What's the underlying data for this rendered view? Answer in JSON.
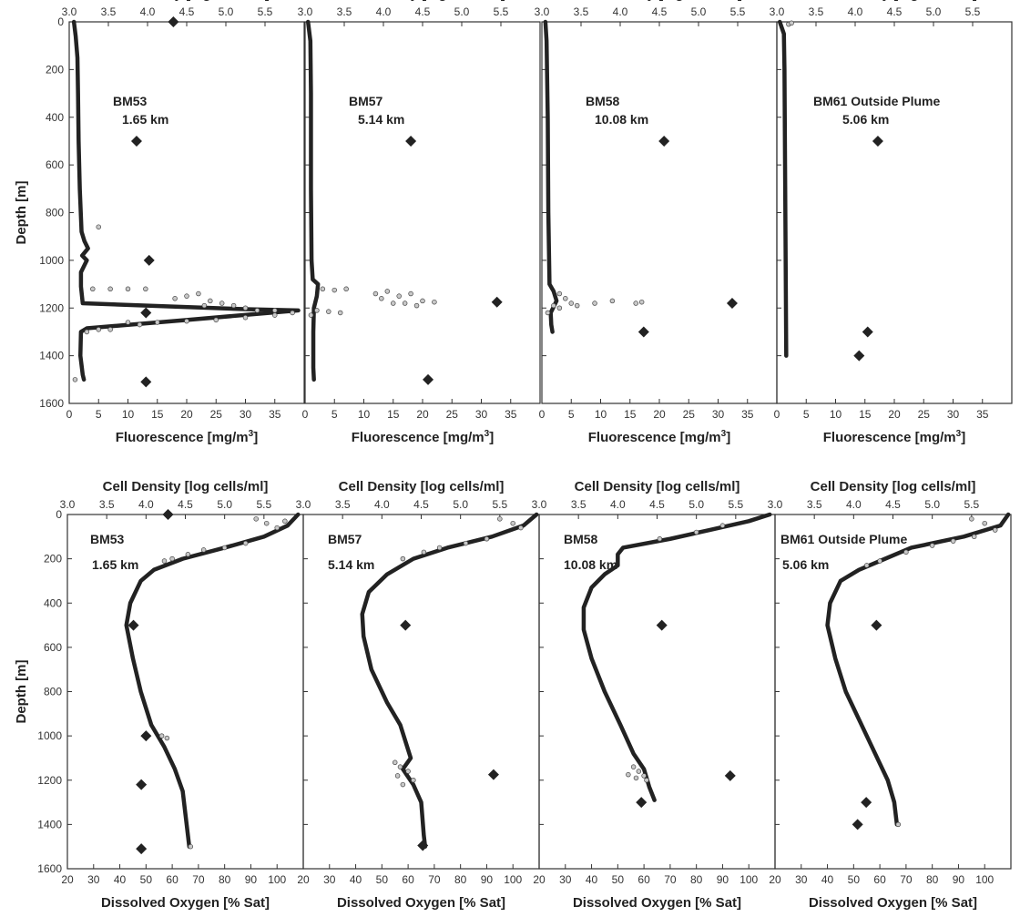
{
  "colors": {
    "profile": "#222222",
    "scatter_fill": "#c8c8c8",
    "scatter_stroke": "#444444",
    "cell_density_marker": "#222222",
    "axis": "#333333"
  },
  "chart_data": [
    {
      "type": "scatter",
      "row": "top",
      "station": "BM53",
      "distance": "1.65 km",
      "xlabel": "Fluorescence [mg/m",
      "xlabel_sup": "3",
      "xlabel_end": "]",
      "x2label": "Cell Density [log cells/ml]",
      "ylabel": "Depth [m]",
      "xlim": [
        0,
        40
      ],
      "xticks": [
        0,
        5,
        10,
        15,
        20,
        25,
        30,
        35
      ],
      "x2lim": [
        3.0,
        6.0
      ],
      "x2ticks": [
        "3.0",
        "3.5",
        "4.0",
        "4.5",
        "5.0",
        "5.5"
      ],
      "ylim": [
        0,
        1600
      ],
      "yticks": [
        0,
        200,
        400,
        600,
        800,
        1000,
        1200,
        1400,
        1600
      ],
      "profile": [
        [
          0.8,
          0
        ],
        [
          1.1,
          60
        ],
        [
          1.4,
          150
        ],
        [
          1.5,
          300
        ],
        [
          1.6,
          500
        ],
        [
          1.8,
          700
        ],
        [
          2.1,
          880
        ],
        [
          2.6,
          920
        ],
        [
          3.2,
          950
        ],
        [
          2.2,
          980
        ],
        [
          3.0,
          1000
        ],
        [
          2.0,
          1050
        ],
        [
          2.0,
          1110
        ],
        [
          2.3,
          1180
        ],
        [
          30,
          1205
        ],
        [
          39,
          1210
        ],
        [
          20,
          1250
        ],
        [
          3,
          1285
        ],
        [
          2,
          1300
        ],
        [
          1.9,
          1400
        ],
        [
          2.3,
          1480
        ],
        [
          2.5,
          1500
        ]
      ],
      "scatter": [
        [
          5,
          860
        ],
        [
          4,
          1120
        ],
        [
          7,
          1120
        ],
        [
          10,
          1120
        ],
        [
          13,
          1120
        ],
        [
          18,
          1160
        ],
        [
          20,
          1150
        ],
        [
          22,
          1140
        ],
        [
          24,
          1170
        ],
        [
          26,
          1180
        ],
        [
          23,
          1190
        ],
        [
          28,
          1190
        ],
        [
          30,
          1200
        ],
        [
          32,
          1210
        ],
        [
          35,
          1210
        ],
        [
          38,
          1220
        ],
        [
          10,
          1260
        ],
        [
          15,
          1260
        ],
        [
          20,
          1255
        ],
        [
          25,
          1250
        ],
        [
          30,
          1240
        ],
        [
          35,
          1230
        ],
        [
          5,
          1290
        ],
        [
          7,
          1290
        ],
        [
          3,
          1300
        ],
        [
          12,
          1270
        ],
        [
          1,
          1500
        ]
      ],
      "cell_density": [
        [
          4.33,
          0
        ],
        [
          3.86,
          500
        ],
        [
          4.02,
          1000
        ],
        [
          3.98,
          1220
        ],
        [
          3.98,
          1510
        ]
      ]
    },
    {
      "type": "scatter",
      "row": "top",
      "station": "BM57",
      "distance": "5.14 km",
      "xlabel": "Fluorescence [mg/m",
      "xlabel_sup": "3",
      "xlabel_end": "]",
      "x2label": "Cell Density [log cells/ml]",
      "xlim": [
        0,
        40
      ],
      "xticks": [
        0,
        5,
        10,
        15,
        20,
        25,
        30,
        35
      ],
      "x2lim": [
        3.0,
        6.0
      ],
      "x2ticks": [
        "3.0",
        "3.5",
        "4.0",
        "4.5",
        "5.0",
        "5.5"
      ],
      "ylim": [
        0,
        1600
      ],
      "profile": [
        [
          0.5,
          0
        ],
        [
          0.9,
          80
        ],
        [
          1.0,
          300
        ],
        [
          1.0,
          700
        ],
        [
          1.1,
          1000
        ],
        [
          1.3,
          1080
        ],
        [
          2.2,
          1100
        ],
        [
          2.0,
          1150
        ],
        [
          1.5,
          1200
        ],
        [
          1.4,
          1300
        ],
        [
          1.4,
          1450
        ],
        [
          1.5,
          1500
        ]
      ],
      "scatter": [
        [
          3,
          1120
        ],
        [
          5,
          1125
        ],
        [
          7,
          1120
        ],
        [
          12,
          1140
        ],
        [
          14,
          1130
        ],
        [
          16,
          1150
        ],
        [
          18,
          1140
        ],
        [
          20,
          1170
        ],
        [
          22,
          1175
        ],
        [
          19,
          1190
        ],
        [
          15,
          1180
        ],
        [
          2,
          1210
        ],
        [
          4,
          1215
        ],
        [
          6,
          1220
        ],
        [
          1,
          1230
        ],
        [
          13,
          1160
        ],
        [
          17,
          1180
        ]
      ],
      "cell_density": [
        [
          4.35,
          500
        ],
        [
          5.45,
          1175
        ],
        [
          4.57,
          1500
        ]
      ]
    },
    {
      "type": "scatter",
      "row": "top",
      "station": "BM58",
      "distance": "10.08 km",
      "xlabel": "Fluorescence [mg/m",
      "xlabel_sup": "3",
      "xlabel_end": "]",
      "x2label": "Cell Density [log cells/ml]",
      "xlim": [
        0,
        40
      ],
      "xticks": [
        0,
        5,
        10,
        15,
        20,
        25,
        30,
        35
      ],
      "x2lim": [
        3.0,
        6.0
      ],
      "x2ticks": [
        "3.0",
        "3.5",
        "4.0",
        "4.5",
        "5.0",
        "5.5"
      ],
      "ylim": [
        0,
        1600
      ],
      "profile": [
        [
          0.6,
          0
        ],
        [
          0.8,
          80
        ],
        [
          1.0,
          400
        ],
        [
          1.1,
          800
        ],
        [
          1.3,
          1100
        ],
        [
          2.0,
          1130
        ],
        [
          2.5,
          1170
        ],
        [
          1.5,
          1220
        ],
        [
          1.6,
          1270
        ],
        [
          1.8,
          1300
        ]
      ],
      "scatter": [
        [
          3,
          1140
        ],
        [
          4,
          1160
        ],
        [
          5,
          1180
        ],
        [
          3,
          1200
        ],
        [
          2,
          1190
        ],
        [
          9,
          1180
        ],
        [
          12,
          1170
        ],
        [
          16,
          1180
        ],
        [
          17,
          1175
        ],
        [
          6,
          1190
        ],
        [
          1,
          1220
        ]
      ],
      "cell_density": [
        [
          4.56,
          500
        ],
        [
          5.43,
          1180
        ],
        [
          4.3,
          1300
        ]
      ]
    },
    {
      "type": "scatter",
      "row": "top",
      "station": "BM61 Outside Plume",
      "distance": "5.06 km",
      "xlabel": "Fluorescence [mg/m",
      "xlabel_sup": "3",
      "xlabel_end": "]",
      "x2label": "Cell Density [log cells/ml]",
      "xlim": [
        0,
        40
      ],
      "xticks": [
        0,
        5,
        10,
        15,
        20,
        25,
        30,
        35
      ],
      "x2lim": [
        3.0,
        6.0
      ],
      "x2ticks": [
        "3.0",
        "3.5",
        "4.0",
        "4.5",
        "5.0",
        "5.5"
      ],
      "ylim": [
        0,
        1600
      ],
      "profile": [
        [
          0.5,
          0
        ],
        [
          1.2,
          50
        ],
        [
          1.3,
          200
        ],
        [
          1.4,
          600
        ],
        [
          1.5,
          1000
        ],
        [
          1.6,
          1400
        ]
      ],
      "scatter": [
        [
          2,
          10
        ],
        [
          2.5,
          5
        ]
      ],
      "cell_density": [
        [
          4.29,
          500
        ],
        [
          4.16,
          1300
        ],
        [
          4.05,
          1400
        ]
      ]
    },
    {
      "type": "scatter",
      "row": "bottom",
      "station": "BM53",
      "distance": "1.65 km",
      "xlabel": "Dissolved Oxygen [% Sat]",
      "x2label": "Cell Density [log cells/ml]",
      "ylabel": "Depth [m]",
      "xlim": [
        20,
        110
      ],
      "xticks": [
        20,
        30,
        40,
        50,
        60,
        70,
        80,
        90,
        100
      ],
      "x2lim": [
        3.0,
        6.0
      ],
      "x2ticks": [
        "3.0",
        "3.5",
        "4.0",
        "4.5",
        "5.0",
        "5.5"
      ],
      "ylim": [
        0,
        1600
      ],
      "yticks": [
        0,
        200,
        400,
        600,
        800,
        1000,
        1200,
        1400,
        1600
      ],
      "profile": [
        [
          108,
          0
        ],
        [
          104,
          50
        ],
        [
          95,
          100
        ],
        [
          80,
          150
        ],
        [
          64,
          200
        ],
        [
          53,
          250
        ],
        [
          48,
          300
        ],
        [
          44,
          400
        ],
        [
          42.5,
          500
        ],
        [
          45,
          650
        ],
        [
          48,
          800
        ],
        [
          52,
          950
        ],
        [
          57,
          1050
        ],
        [
          61,
          1150
        ],
        [
          64,
          1250
        ],
        [
          65.5,
          1400
        ],
        [
          66.5,
          1500
        ]
      ],
      "scatter": [
        [
          92,
          20
        ],
        [
          96,
          40
        ],
        [
          100,
          60
        ],
        [
          103,
          30
        ],
        [
          88,
          130
        ],
        [
          80,
          150
        ],
        [
          72,
          160
        ],
        [
          66,
          180
        ],
        [
          60,
          200
        ],
        [
          57,
          210
        ],
        [
          56,
          1000
        ],
        [
          58,
          1010
        ],
        [
          67,
          1500
        ]
      ],
      "cell_density": [
        [
          4.28,
          0
        ],
        [
          3.84,
          500
        ],
        [
          4.0,
          1000
        ],
        [
          3.94,
          1220
        ],
        [
          3.94,
          1510
        ]
      ]
    },
    {
      "type": "scatter",
      "row": "bottom",
      "station": "BM57",
      "distance": "5.14 km",
      "xlabel": "Dissolved Oxygen [% Sat]",
      "x2label": "Cell Density [log cells/ml]",
      "xlim": [
        20,
        110
      ],
      "xticks": [
        20,
        30,
        40,
        50,
        60,
        70,
        80,
        90,
        100
      ],
      "x2lim": [
        3.0,
        6.0
      ],
      "x2ticks": [
        "3.0",
        "3.5",
        "4.0",
        "4.5",
        "5.0",
        "5.5"
      ],
      "ylim": [
        0,
        1600
      ],
      "profile": [
        [
          109,
          0
        ],
        [
          104,
          50
        ],
        [
          92,
          100
        ],
        [
          75,
          150
        ],
        [
          62,
          200
        ],
        [
          52,
          270
        ],
        [
          45,
          350
        ],
        [
          42.5,
          450
        ],
        [
          43,
          550
        ],
        [
          46,
          700
        ],
        [
          52,
          850
        ],
        [
          57,
          950
        ],
        [
          61,
          1100
        ],
        [
          58,
          1150
        ],
        [
          62,
          1220
        ],
        [
          65,
          1300
        ],
        [
          66,
          1450
        ],
        [
          66.5,
          1500
        ]
      ],
      "scatter": [
        [
          95,
          20
        ],
        [
          100,
          40
        ],
        [
          103,
          60
        ],
        [
          90,
          110
        ],
        [
          82,
          130
        ],
        [
          72,
          150
        ],
        [
          66,
          170
        ],
        [
          58,
          200
        ],
        [
          55,
          1120
        ],
        [
          57,
          1140
        ],
        [
          60,
          1160
        ],
        [
          56,
          1180
        ],
        [
          62,
          1200
        ],
        [
          58,
          1220
        ]
      ],
      "cell_density": [
        [
          4.3,
          500
        ],
        [
          5.42,
          1175
        ],
        [
          4.52,
          1495
        ]
      ]
    },
    {
      "type": "scatter",
      "row": "bottom",
      "station": "BM58",
      "distance": "10.08 km",
      "xlabel": "Dissolved Oxygen [% Sat]",
      "x2label": "Cell Density [log cells/ml]",
      "xlim": [
        20,
        110
      ],
      "xticks": [
        20,
        30,
        40,
        50,
        60,
        70,
        80,
        90,
        100
      ],
      "x2lim": [
        3.0,
        6.0
      ],
      "x2ticks": [
        "3.0",
        "3.5",
        "4.0",
        "4.5",
        "5.0",
        "5.5"
      ],
      "ylim": [
        0,
        1600
      ],
      "profile": [
        [
          108,
          0
        ],
        [
          100,
          30
        ],
        [
          85,
          70
        ],
        [
          70,
          110
        ],
        [
          52,
          150
        ],
        [
          50,
          180
        ],
        [
          50,
          230
        ],
        [
          45,
          270
        ],
        [
          40,
          330
        ],
        [
          37,
          420
        ],
        [
          37,
          520
        ],
        [
          40,
          650
        ],
        [
          45,
          800
        ],
        [
          51,
          950
        ],
        [
          56,
          1080
        ],
        [
          60,
          1150
        ],
        [
          62,
          1230
        ],
        [
          64,
          1290
        ]
      ],
      "scatter": [
        [
          90,
          50
        ],
        [
          80,
          80
        ],
        [
          66,
          110
        ],
        [
          56,
          1140
        ],
        [
          58,
          1160
        ],
        [
          60,
          1180
        ],
        [
          54,
          1175
        ],
        [
          61,
          1200
        ],
        [
          57,
          1190
        ]
      ],
      "cell_density": [
        [
          4.56,
          500
        ],
        [
          5.43,
          1180
        ],
        [
          4.3,
          1300
        ]
      ]
    },
    {
      "type": "scatter",
      "row": "bottom",
      "station": "BM61 Outside Plume",
      "distance": "5.06 km",
      "xlabel": "Dissolved Oxygen [% Sat]",
      "x2label": "Cell Density [log cells/ml]",
      "xlim": [
        20,
        110
      ],
      "xticks": [
        20,
        30,
        40,
        50,
        60,
        70,
        80,
        90,
        100
      ],
      "x2lim": [
        3.0,
        6.0
      ],
      "x2ticks": [
        "3.0",
        "3.5",
        "4.0",
        "4.5",
        "5.0",
        "5.5"
      ],
      "ylim": [
        0,
        1600
      ],
      "profile": [
        [
          109,
          0
        ],
        [
          106,
          50
        ],
        [
          92,
          100
        ],
        [
          72,
          150
        ],
        [
          62,
          200
        ],
        [
          52,
          250
        ],
        [
          45,
          300
        ],
        [
          41,
          400
        ],
        [
          40,
          500
        ],
        [
          43,
          650
        ],
        [
          47,
          800
        ],
        [
          53,
          950
        ],
        [
          59,
          1100
        ],
        [
          63,
          1200
        ],
        [
          65.5,
          1300
        ],
        [
          66.5,
          1400
        ]
      ],
      "scatter": [
        [
          95,
          20
        ],
        [
          100,
          40
        ],
        [
          104,
          70
        ],
        [
          96,
          100
        ],
        [
          88,
          120
        ],
        [
          80,
          140
        ],
        [
          70,
          170
        ],
        [
          60,
          210
        ],
        [
          55,
          230
        ],
        [
          67,
          1400
        ]
      ],
      "cell_density": [
        [
          4.29,
          500
        ],
        [
          4.16,
          1300
        ],
        [
          4.05,
          1400
        ]
      ]
    }
  ]
}
